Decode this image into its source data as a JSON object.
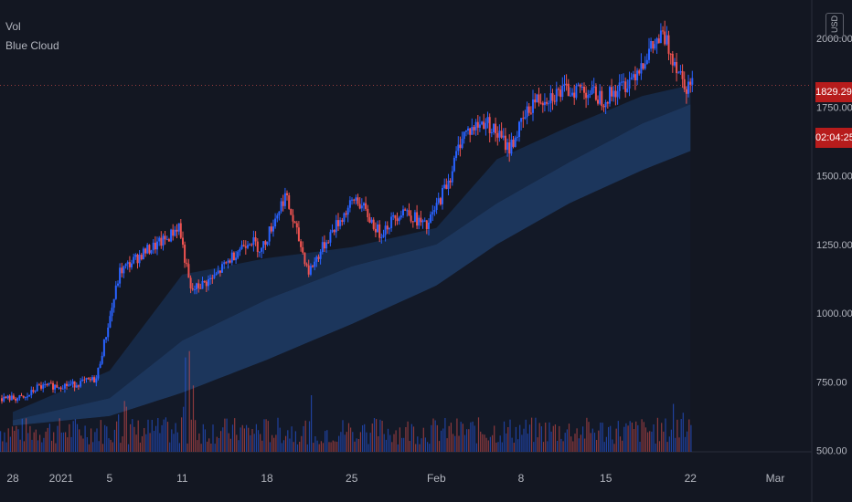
{
  "legend": {
    "vol": "Vol",
    "indicator": "Blue Cloud"
  },
  "currency_button": "USD",
  "last_price_label": "1829.29",
  "countdown_label": "02:04:25",
  "colors": {
    "background": "#131722",
    "up": "#2962ff",
    "down": "#ef5350",
    "cloud_inner": "#1e3a63",
    "cloud_outer": "#172b4a",
    "axis_text": "#b2b5be",
    "price_tag": "#b71c1c"
  },
  "chart_data": {
    "type": "candlestick",
    "title": "",
    "series": [
      {
        "name": "Vol"
      },
      {
        "name": "Blue Cloud"
      }
    ],
    "y_axis": {
      "ticks": [
        "2000.00",
        "1750.00",
        "1500.00",
        "1250.00",
        "1000.00",
        "750.00",
        "500.00"
      ],
      "values": [
        2000,
        1750,
        1500,
        1250,
        1000,
        750,
        500
      ],
      "ylim": [
        495,
        2140
      ]
    },
    "x_axis": {
      "ticks": [
        "28",
        "2021",
        "5",
        "11",
        "18",
        "25",
        "Feb",
        "8",
        "15",
        "22",
        "Mar"
      ]
    },
    "close_path": [
      {
        "date": "2020-12-28",
        "price": 690
      },
      {
        "date": "2020-12-29",
        "price": 730
      },
      {
        "date": "2021-01-01",
        "price": 740
      },
      {
        "date": "2021-01-03",
        "price": 760
      },
      {
        "date": "2021-01-05",
        "price": 1150
      },
      {
        "date": "2021-01-07",
        "price": 1220
      },
      {
        "date": "2021-01-09",
        "price": 1270
      },
      {
        "date": "2021-01-10",
        "price": 1320
      },
      {
        "date": "2021-01-11",
        "price": 1080
      },
      {
        "date": "2021-01-13",
        "price": 1130
      },
      {
        "date": "2021-01-15",
        "price": 1230
      },
      {
        "date": "2021-01-16",
        "price": 1270
      },
      {
        "date": "2021-01-17",
        "price": 1230
      },
      {
        "date": "2021-01-19",
        "price": 1430
      },
      {
        "date": "2021-01-21",
        "price": 1150
      },
      {
        "date": "2021-01-23",
        "price": 1300
      },
      {
        "date": "2021-01-25",
        "price": 1420
      },
      {
        "date": "2021-01-27",
        "price": 1290
      },
      {
        "date": "2021-01-29",
        "price": 1380
      },
      {
        "date": "2021-01-31",
        "price": 1310
      },
      {
        "date": "2021-02-02",
        "price": 1500
      },
      {
        "date": "2021-02-03",
        "price": 1650
      },
      {
        "date": "2021-02-05",
        "price": 1700
      },
      {
        "date": "2021-02-07",
        "price": 1600
      },
      {
        "date": "2021-02-09",
        "price": 1770
      },
      {
        "date": "2021-02-11",
        "price": 1800
      },
      {
        "date": "2021-02-13",
        "price": 1820
      },
      {
        "date": "2021-02-15",
        "price": 1780
      },
      {
        "date": "2021-02-17",
        "price": 1840
      },
      {
        "date": "2021-02-19",
        "price": 1960
      },
      {
        "date": "2021-02-20",
        "price": 2010
      },
      {
        "date": "2021-02-21",
        "price": 1920
      },
      {
        "date": "2021-02-22",
        "price": 1829.29
      }
    ],
    "cloud_upper": [
      {
        "date": "2020-12-28",
        "price": 640
      },
      {
        "date": "2021-01-05",
        "price": 790
      },
      {
        "date": "2021-01-11",
        "price": 1140
      },
      {
        "date": "2021-01-18",
        "price": 1200
      },
      {
        "date": "2021-01-25",
        "price": 1240
      },
      {
        "date": "2021-02-01",
        "price": 1310
      },
      {
        "date": "2021-02-06",
        "price": 1560
      },
      {
        "date": "2021-02-12",
        "price": 1680
      },
      {
        "date": "2021-02-18",
        "price": 1790
      },
      {
        "date": "2021-02-22",
        "price": 1830
      }
    ],
    "cloud_mid": [
      {
        "date": "2020-12-28",
        "price": 610
      },
      {
        "date": "2021-01-05",
        "price": 690
      },
      {
        "date": "2021-01-11",
        "price": 900
      },
      {
        "date": "2021-01-18",
        "price": 1050
      },
      {
        "date": "2021-01-25",
        "price": 1170
      },
      {
        "date": "2021-02-01",
        "price": 1250
      },
      {
        "date": "2021-02-06",
        "price": 1400
      },
      {
        "date": "2021-02-12",
        "price": 1550
      },
      {
        "date": "2021-02-18",
        "price": 1690
      },
      {
        "date": "2021-02-22",
        "price": 1760
      }
    ],
    "cloud_lower": [
      {
        "date": "2020-12-28",
        "price": 590
      },
      {
        "date": "2021-01-05",
        "price": 625
      },
      {
        "date": "2021-01-11",
        "price": 710
      },
      {
        "date": "2021-01-18",
        "price": 830
      },
      {
        "date": "2021-01-25",
        "price": 960
      },
      {
        "date": "2021-02-01",
        "price": 1100
      },
      {
        "date": "2021-02-06",
        "price": 1250
      },
      {
        "date": "2021-02-12",
        "price": 1400
      },
      {
        "date": "2021-02-18",
        "price": 1520
      },
      {
        "date": "2021-02-22",
        "price": 1590
      }
    ],
    "volume_spikes": [
      {
        "date": "2021-01-11",
        "level": 1.0
      },
      {
        "date": "2021-01-10",
        "level": 0.75
      },
      {
        "date": "2021-01-21",
        "level": 0.85
      },
      {
        "date": "2021-01-05",
        "level": 0.45
      },
      {
        "date": "2021-01-25",
        "level": 0.45
      },
      {
        "date": "2021-02-21",
        "level": 0.35
      }
    ]
  }
}
